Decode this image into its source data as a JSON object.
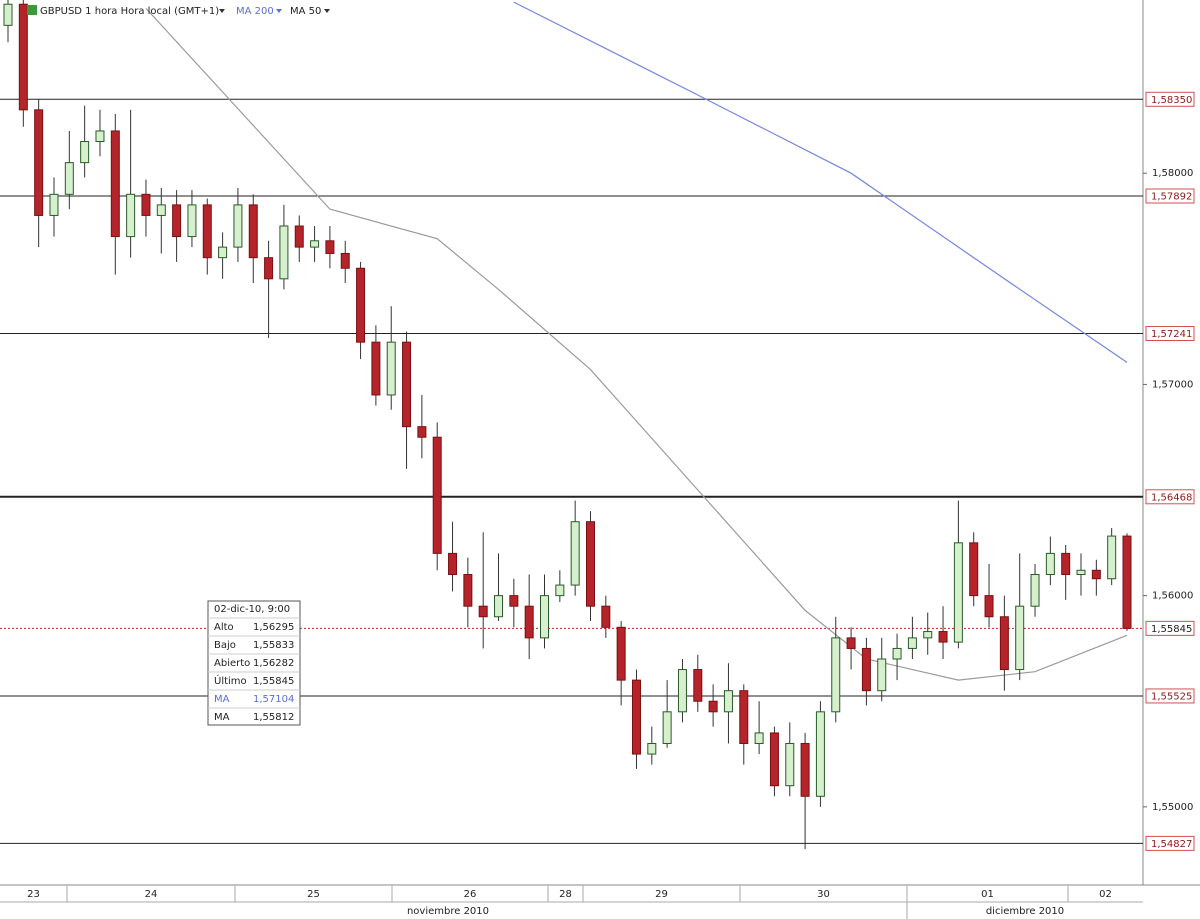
{
  "chart_data": {
    "type": "candlestick",
    "title": "GBPUSD 1 hora Hora local (GMT+1)",
    "up_color": "#d6efcd",
    "down_color": "#b5242a",
    "ylim": [
      1.5463,
      1.5882
    ],
    "yticks": [
      {
        "value": 1.58,
        "label": "1,58000"
      },
      {
        "value": 1.57,
        "label": "1,57000"
      },
      {
        "value": 1.56,
        "label": "1,56000"
      },
      {
        "value": 1.55,
        "label": "1,55000"
      }
    ],
    "open": [
      1.587,
      1.588,
      1.583,
      1.578,
      1.579,
      1.5805,
      1.5815,
      1.582,
      1.577,
      1.579,
      1.578,
      1.5785,
      1.577,
      1.5785,
      1.576,
      1.5765,
      1.5785,
      1.576,
      1.575,
      1.5775,
      1.5765,
      1.5768,
      1.5762,
      1.5755,
      1.572,
      1.5695,
      1.572,
      1.568,
      1.5675,
      1.562,
      1.561,
      1.5595,
      1.559,
      1.56,
      1.5595,
      1.558,
      1.56,
      1.5605,
      1.5635,
      1.5595,
      1.5585,
      1.556,
      1.5525,
      1.553,
      1.5545,
      1.5565,
      1.555,
      1.5545,
      1.5555,
      1.553,
      1.5535,
      1.551,
      1.553,
      1.5505,
      1.5545,
      1.558,
      1.5575,
      1.5555,
      1.557,
      1.5575,
      1.558,
      1.5583,
      1.5578,
      1.5625,
      1.56,
      1.559,
      1.5565,
      1.5595,
      1.561,
      1.562,
      1.561,
      1.5612,
      1.5608,
      1.56282
    ],
    "high": [
      1.5885,
      1.5884,
      1.5835,
      1.5798,
      1.582,
      1.5832,
      1.583,
      1.5828,
      1.583,
      1.5797,
      1.5793,
      1.5792,
      1.5792,
      1.5788,
      1.5772,
      1.5793,
      1.579,
      1.5768,
      1.5785,
      1.578,
      1.5775,
      1.5775,
      1.5768,
      1.5758,
      1.5728,
      1.5737,
      1.5725,
      1.5695,
      1.5682,
      1.5635,
      1.5618,
      1.563,
      1.562,
      1.5608,
      1.561,
      1.561,
      1.5612,
      1.5645,
      1.564,
      1.56,
      1.5588,
      1.5565,
      1.5538,
      1.556,
      1.557,
      1.5572,
      1.5558,
      1.5568,
      1.5558,
      1.555,
      1.5538,
      1.554,
      1.5535,
      1.555,
      1.559,
      1.5585,
      1.558,
      1.558,
      1.5582,
      1.559,
      1.5592,
      1.5595,
      1.5645,
      1.563,
      1.5615,
      1.56,
      1.562,
      1.5615,
      1.5628,
      1.5624,
      1.562,
      1.5617,
      1.5632,
      1.56295
    ],
    "low": [
      1.5862,
      1.5822,
      1.5765,
      1.577,
      1.5783,
      1.5798,
      1.5808,
      1.5752,
      1.576,
      1.577,
      1.5762,
      1.5758,
      1.5765,
      1.5752,
      1.575,
      1.5758,
      1.5748,
      1.5722,
      1.5745,
      1.5758,
      1.5758,
      1.5755,
      1.5748,
      1.5712,
      1.569,
      1.5688,
      1.566,
      1.5665,
      1.5612,
      1.5602,
      1.5585,
      1.5575,
      1.5588,
      1.5585,
      1.557,
      1.5575,
      1.5597,
      1.56,
      1.5588,
      1.558,
      1.5548,
      1.5518,
      1.552,
      1.5528,
      1.554,
      1.5545,
      1.5538,
      1.553,
      1.552,
      1.5525,
      1.5505,
      1.5505,
      1.548,
      1.55,
      1.554,
      1.5565,
      1.5548,
      1.555,
      1.556,
      1.557,
      1.5572,
      1.557,
      1.5575,
      1.5595,
      1.5585,
      1.5555,
      1.556,
      1.559,
      1.5605,
      1.5598,
      1.56,
      1.56,
      1.5605,
      1.55833
    ],
    "close": [
      1.588,
      1.583,
      1.578,
      1.579,
      1.5805,
      1.5815,
      1.582,
      1.577,
      1.579,
      1.578,
      1.5785,
      1.577,
      1.5785,
      1.576,
      1.5765,
      1.5785,
      1.576,
      1.575,
      1.5775,
      1.5765,
      1.5768,
      1.5762,
      1.5755,
      1.572,
      1.5695,
      1.572,
      1.568,
      1.5675,
      1.562,
      1.561,
      1.5595,
      1.559,
      1.56,
      1.5595,
      1.558,
      1.56,
      1.5605,
      1.5635,
      1.5595,
      1.5585,
      1.556,
      1.5525,
      1.553,
      1.5545,
      1.5565,
      1.555,
      1.5545,
      1.5555,
      1.553,
      1.5535,
      1.551,
      1.553,
      1.5505,
      1.5545,
      1.558,
      1.5575,
      1.5555,
      1.557,
      1.5575,
      1.558,
      1.5583,
      1.5578,
      1.5625,
      1.56,
      1.559,
      1.5565,
      1.5595,
      1.561,
      1.562,
      1.561,
      1.5612,
      1.5608,
      1.56282,
      1.55845
    ],
    "series": [
      {
        "name": "MA 200",
        "color": "#7385e0",
        "x": [
          33,
          45,
          55,
          65,
          73
        ],
        "values": [
          1.5881,
          1.5837,
          1.58,
          1.575,
          1.57104
        ]
      },
      {
        "name": "MA 50",
        "color": "#9a9a9a",
        "x": [
          9,
          21,
          28,
          32,
          38,
          45,
          52,
          56,
          62,
          67,
          73
        ],
        "values": [
          1.5878,
          1.5783,
          1.5769,
          1.5745,
          1.5707,
          1.565,
          1.5593,
          1.557,
          1.556,
          1.5564,
          1.55812
        ]
      }
    ],
    "levels": [
      {
        "value": 1.5835,
        "label": "1,58350"
      },
      {
        "value": 1.57892,
        "label": "1,57892"
      },
      {
        "value": 1.57241,
        "label": "1,57241"
      },
      {
        "value": 1.56468,
        "label": "1,56468"
      },
      {
        "value": 1.55525,
        "label": "1,55525"
      },
      {
        "value": 1.54827,
        "label": "1,54827"
      }
    ],
    "current": {
      "value": 1.55845,
      "label": "1,55845"
    },
    "days": [
      "23",
      "24",
      "25",
      "26",
      "28",
      "29",
      "30",
      "01",
      "02"
    ],
    "months": [
      "noviembre 2010",
      "diciembre 2010"
    ],
    "tooltip": {
      "title": "02-dic-10, 9:00",
      "rows": [
        {
          "label": "Alto",
          "value": "1,56295"
        },
        {
          "label": "Bajo",
          "value": "1,55833"
        },
        {
          "label": "Abierto",
          "value": "1,56282"
        },
        {
          "label": "Último",
          "value": "1,55845"
        },
        {
          "label": "MA",
          "value": "1,57104"
        },
        {
          "label": "MA",
          "value": "1,55812"
        }
      ]
    }
  }
}
